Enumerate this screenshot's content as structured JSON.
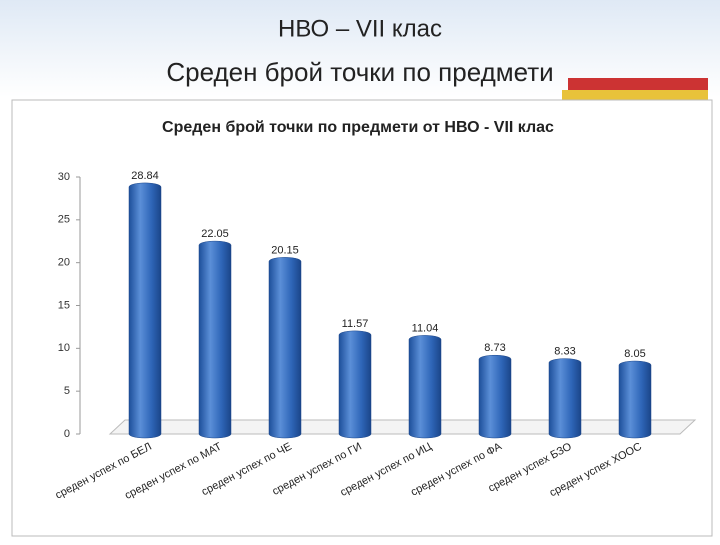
{
  "slide": {
    "title_line1": "НВО – VII клас",
    "title_line2": "Среден брой точки  по предмети"
  },
  "chart_data": {
    "type": "bar",
    "title": "Среден брой точки по предмети от НВО - VII клас",
    "categories": [
      "среден успех по БЕЛ",
      "среден успех по МАТ",
      "среден успех по ЧЕ",
      "среден успех по ГИ",
      "среден успех по ИЦ",
      "среден успех по ФА",
      "среден успех БЗО",
      "среден успех ХООС"
    ],
    "values": [
      28.84,
      22.05,
      20.15,
      11.57,
      11.04,
      8.73,
      8.33,
      8.05
    ],
    "color": "#2f66b8",
    "ylim": [
      0,
      30
    ],
    "yticks": [
      0,
      5,
      10,
      15,
      20,
      25,
      30
    ],
    "grid": false
  }
}
